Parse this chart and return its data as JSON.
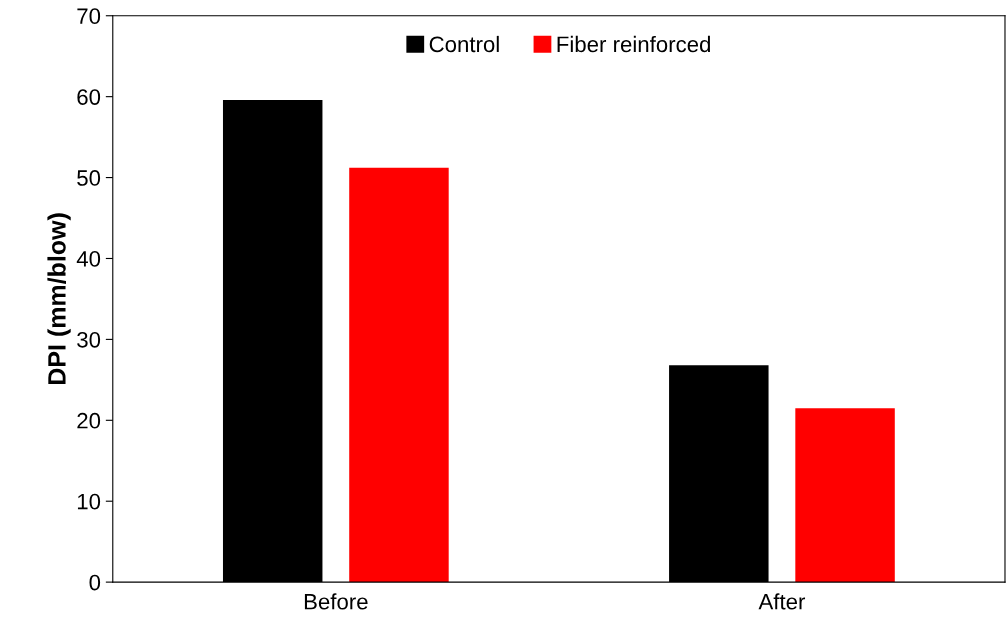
{
  "chart_data": {
    "type": "bar",
    "ylabel": "DPI (mm/blow)",
    "categories": [
      "Before",
      "After"
    ],
    "series": [
      {
        "name": "Control",
        "color": "#000000",
        "values": [
          59.6,
          26.8
        ]
      },
      {
        "name": "Fiber reinforced",
        "color": "#ff0000",
        "values": [
          51.2,
          21.5
        ]
      }
    ],
    "ylim": [
      0,
      70
    ],
    "yticks": [
      0,
      10,
      20,
      30,
      40,
      50,
      60,
      70
    ],
    "grid": false,
    "legend": "top"
  }
}
